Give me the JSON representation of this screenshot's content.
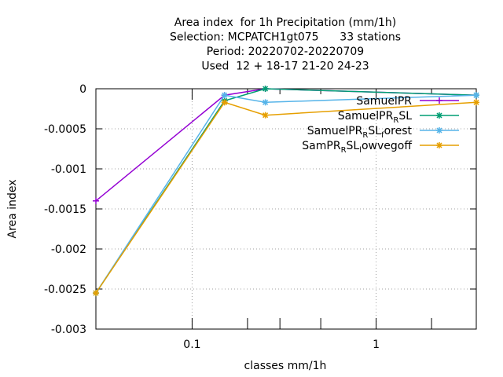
{
  "chart_data": {
    "type": "line",
    "title_lines": [
      "Area index  for 1h Precipitation (mm/1h)",
      "Selection: MCPATCH1gt075      33 stations",
      "Period: 20220702-20220709",
      "Used  12 + 18-17 21-20 24-23"
    ],
    "xlabel": "classes mm/1h",
    "ylabel": "Area index",
    "x_scale": "log",
    "xlim": [
      0.03,
      3.5
    ],
    "ylim": [
      -0.003,
      0
    ],
    "x_ticks": [
      {
        "value": 0.1,
        "label": "0.1"
      },
      {
        "value": 1,
        "label": "1"
      }
    ],
    "x_minor_ticks": [
      0.2,
      0.3,
      0.5,
      2
    ],
    "y_ticks": [
      {
        "value": 0,
        "label": "0"
      },
      {
        "value": -0.0005,
        "label": "-0.0005"
      },
      {
        "value": -0.001,
        "label": "-0.001"
      },
      {
        "value": -0.0015,
        "label": "-0.0015"
      },
      {
        "value": -0.002,
        "label": "-0.002"
      },
      {
        "value": -0.0025,
        "label": "-0.0025"
      },
      {
        "value": -0.003,
        "label": "-0.003"
      }
    ],
    "grid": true,
    "legend_position": "top-right",
    "series": [
      {
        "name": "SamuelPR",
        "color": "#9400d3",
        "marker": "plus",
        "points": [
          [
            0.03,
            -0.0014
          ],
          [
            0.15,
            -8e-05
          ],
          [
            0.25,
            0
          ],
          [
            3.5,
            -8e-05
          ]
        ]
      },
      {
        "name": "SamuelPR_RSL",
        "label_parts": [
          [
            "SamuelPR",
            "normal"
          ],
          [
            "R",
            "sub"
          ],
          [
            "SL",
            "normal"
          ]
        ],
        "color": "#009e73",
        "marker": "star",
        "points": [
          [
            0.03,
            -0.00255
          ],
          [
            0.15,
            -0.00015
          ],
          [
            0.25,
            0
          ],
          [
            3.5,
            -8e-05
          ]
        ]
      },
      {
        "name": "SamuelPR_RSL_forest",
        "label_parts": [
          [
            "SamuelPR",
            "normal"
          ],
          [
            "R",
            "sub"
          ],
          [
            "SL",
            "normal"
          ],
          [
            "f",
            "sub"
          ],
          [
            "orest",
            "normal"
          ]
        ],
        "color": "#56b4e9",
        "marker": "star",
        "points": [
          [
            0.03,
            -0.00255
          ],
          [
            0.15,
            -8e-05
          ],
          [
            0.25,
            -0.00017
          ],
          [
            3.5,
            -8e-05
          ]
        ]
      },
      {
        "name": "SamPR_RSL_lowvegoff",
        "label_parts": [
          [
            "SamPR",
            "normal"
          ],
          [
            "R",
            "sub"
          ],
          [
            "SL",
            "normal"
          ],
          [
            "l",
            "sub"
          ],
          [
            "owvegoff",
            "normal"
          ]
        ],
        "color": "#e69f00",
        "marker": "star",
        "points": [
          [
            0.03,
            -0.00255
          ],
          [
            0.15,
            -0.00017
          ],
          [
            0.25,
            -0.00033
          ],
          [
            3.5,
            -0.00017
          ]
        ]
      }
    ]
  }
}
